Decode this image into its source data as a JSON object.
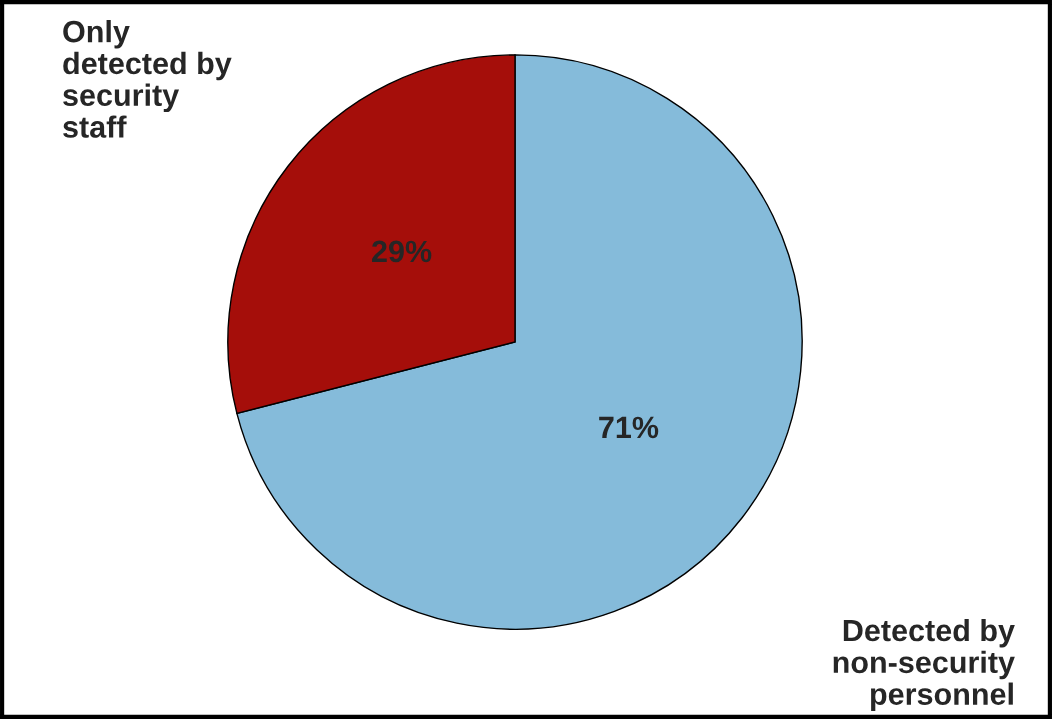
{
  "chart_data": {
    "type": "pie",
    "categories": [
      "Detected by\nnon-security\npersonnel",
      "Only\ndetected by\nsecurity\nstaff"
    ],
    "values": [
      71,
      29
    ],
    "colors": [
      "#85bbda",
      "#a50e0a"
    ],
    "value_labels": [
      "71%",
      "29%"
    ],
    "legend": false
  }
}
